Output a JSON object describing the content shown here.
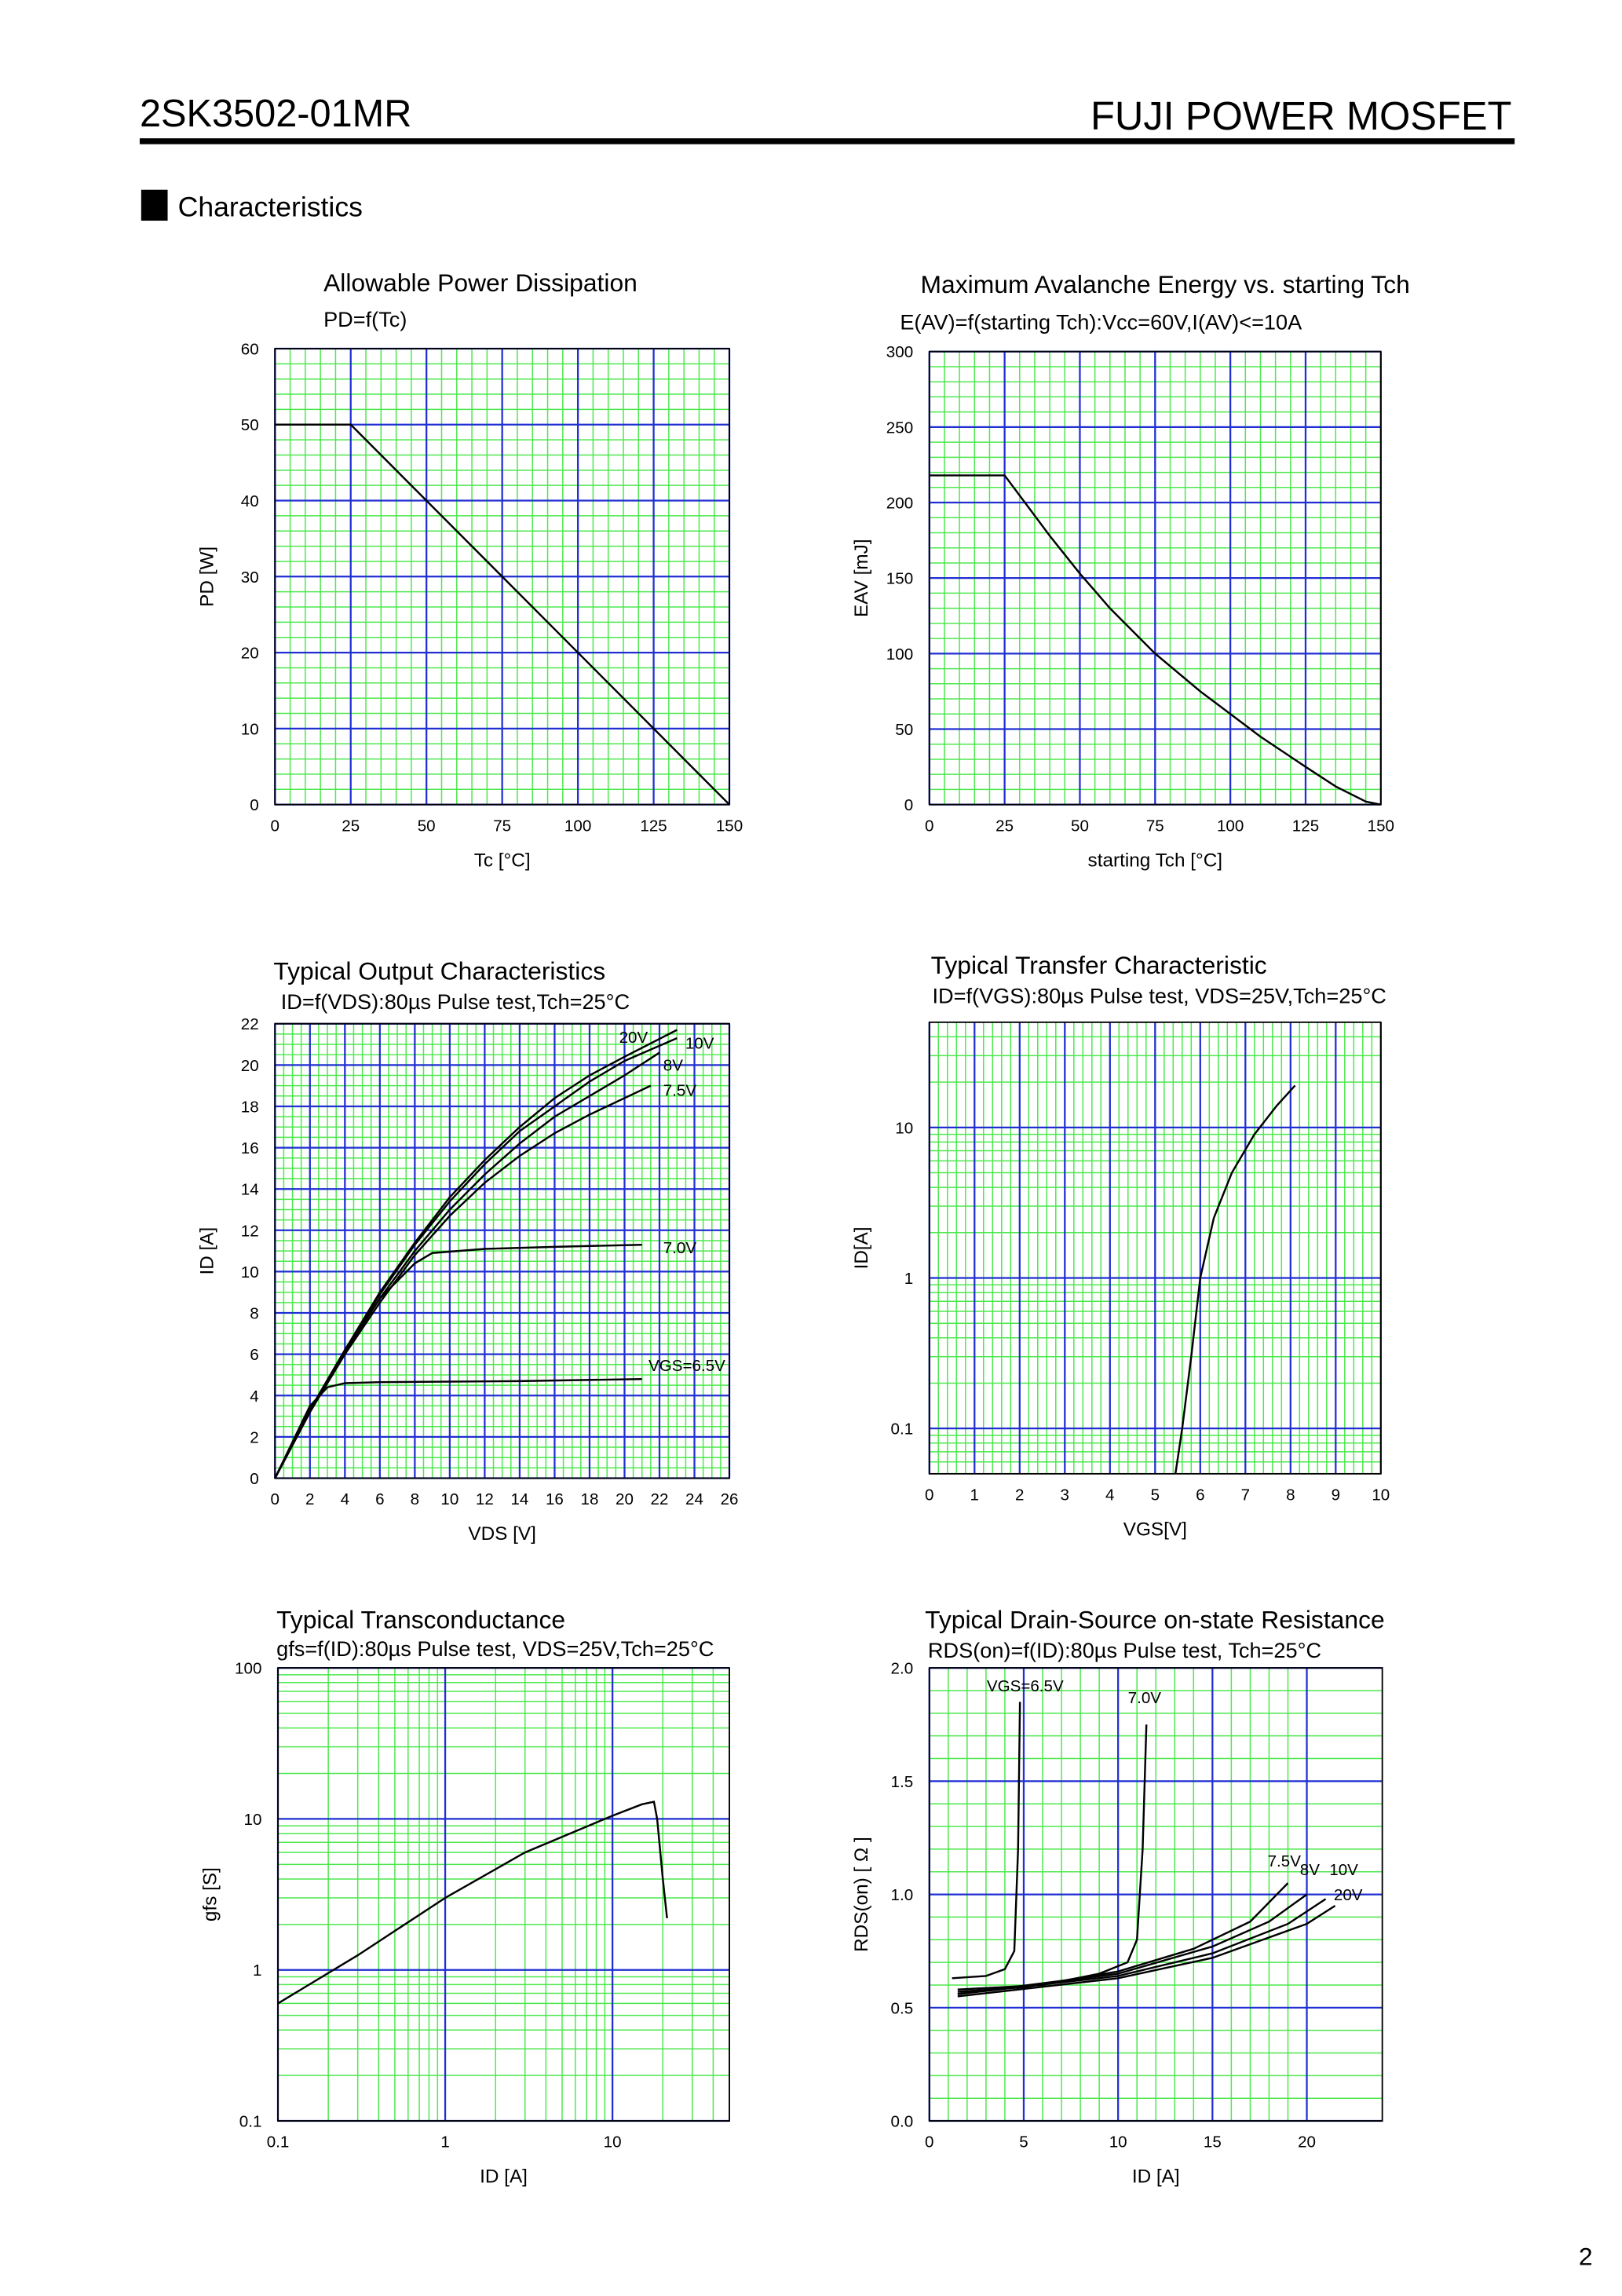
{
  "header": {
    "part_number": "2SK3502-01MR",
    "brand": "FUJI POWER MOSFET"
  },
  "section": "Characteristics",
  "page_number": "2",
  "chart_data": [
    {
      "type": "line",
      "title": "Allowable Power Dissipation",
      "subtitle": "PD=f(Tc)",
      "xlabel": "Tc [°C]",
      "ylabel": "PD [W]",
      "xlim": [
        0,
        150
      ],
      "ylim": [
        0,
        60
      ],
      "xticks": [
        0,
        25,
        50,
        75,
        100,
        125,
        150
      ],
      "yticks": [
        0,
        10,
        20,
        30,
        40,
        50,
        60
      ],
      "grid": true,
      "grid_color": "#1f2fd0",
      "minor_grid_color": "#4de84d",
      "series": [
        {
          "color": "#000000",
          "x": [
            0,
            25,
            150
          ],
          "values": [
            50,
            50,
            0
          ]
        }
      ]
    },
    {
      "type": "line",
      "title": "Maximum Avalanche Energy vs. starting Tch",
      "subtitle": "E(AV)=f(starting Tch):Vcc=60V,I(AV)<=10A",
      "xlabel": "starting Tch [°C]",
      "ylabel": "EAV [mJ]",
      "xlim": [
        0,
        150
      ],
      "ylim": [
        0,
        300
      ],
      "xticks": [
        0,
        25,
        50,
        75,
        100,
        125,
        150
      ],
      "yticks": [
        0,
        50,
        100,
        150,
        200,
        250,
        300
      ],
      "grid": true,
      "grid_color": "#1f2fd0",
      "minor_grid_color": "#4de84d",
      "series": [
        {
          "color": "#000000",
          "x": [
            0,
            25,
            40,
            50,
            60,
            75,
            90,
            100,
            110,
            125,
            135,
            145,
            150
          ],
          "values": [
            218,
            218,
            178,
            153,
            130,
            100,
            75,
            60,
            45,
            25,
            12,
            2,
            0
          ]
        }
      ]
    },
    {
      "type": "line",
      "title": "Typical Output Characteristics",
      "subtitle": "ID=f(VDS):80µs Pulse test,Tch=25°C",
      "xlabel": "VDS [V]",
      "ylabel": "ID [A]",
      "xlim": [
        0,
        26
      ],
      "ylim": [
        0,
        22
      ],
      "xticks": [
        0,
        2,
        4,
        6,
        8,
        10,
        12,
        14,
        16,
        18,
        20,
        22,
        24,
        26
      ],
      "yticks": [
        0,
        2,
        4,
        6,
        8,
        10,
        12,
        14,
        16,
        18,
        20,
        22
      ],
      "grid": true,
      "grid_color": "#1f2fd0",
      "minor_grid_color": "#4de84d",
      "series": [
        {
          "name": "20V",
          "color": "#000000",
          "x": [
            0,
            2,
            4,
            6,
            8,
            10,
            12,
            14,
            16,
            18,
            20,
            23
          ],
          "values": [
            0,
            3.3,
            6.2,
            9,
            11.4,
            13.6,
            15.4,
            17,
            18.4,
            19.5,
            20.4,
            21.7
          ]
        },
        {
          "name": "10V",
          "color": "#000000",
          "x": [
            0,
            2,
            4,
            6,
            8,
            10,
            12,
            14,
            16,
            18,
            20,
            23
          ],
          "values": [
            0,
            3.3,
            6.2,
            8.9,
            11.3,
            13.4,
            15.2,
            16.8,
            18,
            19.2,
            20.2,
            21.3
          ]
        },
        {
          "name": "8V",
          "color": "#000000",
          "x": [
            0,
            2,
            4,
            6,
            8,
            10,
            12,
            14,
            16,
            18,
            20,
            22
          ],
          "values": [
            0,
            3.2,
            6.1,
            8.7,
            11,
            13,
            14.7,
            16.2,
            17.5,
            18.5,
            19.5,
            20.6
          ]
        },
        {
          "name": "7.5V",
          "color": "#000000",
          "x": [
            0,
            2,
            4,
            6,
            8,
            10,
            12,
            14,
            16,
            18,
            20,
            21.5
          ],
          "values": [
            0,
            3.2,
            6,
            8.5,
            10.8,
            12.7,
            14.3,
            15.6,
            16.7,
            17.6,
            18.4,
            19
          ]
        },
        {
          "name": "7.0V",
          "color": "#000000",
          "x": [
            0,
            2,
            4,
            6,
            8,
            9,
            12,
            16,
            21
          ],
          "values": [
            0,
            3.3,
            6.2,
            8.7,
            10.4,
            10.9,
            11.1,
            11.2,
            11.3
          ]
        },
        {
          "name": "VGS=6.5V",
          "color": "#000000",
          "x": [
            0,
            2,
            3,
            4,
            6,
            14,
            21
          ],
          "values": [
            0,
            3.5,
            4.4,
            4.6,
            4.65,
            4.7,
            4.8
          ]
        }
      ]
    },
    {
      "type": "line",
      "title": "Typical Transfer Characteristic",
      "subtitle": "ID=f(VGS):80µs Pulse test, VDS=25V,Tch=25°C",
      "xlabel": "VGS[V]",
      "ylabel": "ID[A]",
      "xlim": [
        0,
        10
      ],
      "ylim": [
        0.05,
        50
      ],
      "log_y": true,
      "xticks": [
        0,
        1,
        2,
        3,
        4,
        5,
        6,
        7,
        8,
        9,
        10
      ],
      "yticks": [
        0.1,
        1,
        10
      ],
      "grid": true,
      "grid_color": "#1f2fd0",
      "minor_grid_color": "#4de84d",
      "series": [
        {
          "color": "#000000",
          "x": [
            5.45,
            5.6,
            5.8,
            6,
            6.3,
            6.7,
            7.2,
            7.7,
            8.1
          ],
          "values": [
            0.05,
            0.1,
            0.3,
            1,
            2.5,
            5,
            9,
            14,
            19
          ]
        }
      ]
    },
    {
      "type": "line",
      "title": "Typical Transconductance",
      "subtitle": "gfs=f(ID):80µs Pulse test, VDS=25V,Tch=25°C",
      "xlabel": "ID [A]",
      "ylabel": "gfs [S]",
      "xlim": [
        0.1,
        50
      ],
      "ylim": [
        0.1,
        100
      ],
      "log_x": true,
      "log_y": true,
      "xticks": [
        0.1,
        1,
        10
      ],
      "yticks": [
        0.1,
        1,
        10,
        100
      ],
      "grid": true,
      "grid_color": "#1f2fd0",
      "minor_grid_color": "#4de84d",
      "series": [
        {
          "color": "#000000",
          "x": [
            0.1,
            0.3,
            1,
            3,
            10,
            15,
            17.7,
            18.5,
            20,
            21.2
          ],
          "values": [
            0.6,
            1.25,
            3,
            6,
            10.5,
            12.5,
            13,
            10,
            4,
            2.2
          ]
        }
      ]
    },
    {
      "type": "line",
      "title": "Typical Drain-Source on-state Resistance",
      "subtitle": "RDS(on)=f(ID):80µs Pulse test, Tch=25°C",
      "xlabel": "ID [A]",
      "ylabel": "RDS(on) [ Ω ]",
      "xlim": [
        0,
        24
      ],
      "ylim": [
        0,
        2
      ],
      "xticks": [
        0,
        5,
        10,
        15,
        20
      ],
      "yticks": [
        {
          "value": 0,
          "label": "0.0"
        },
        {
          "value": 0.5,
          "label": "0.5"
        },
        {
          "value": 1,
          "label": "1.0"
        },
        {
          "value": 1.5,
          "label": "1.5"
        },
        {
          "value": 2,
          "label": "2.0"
        }
      ],
      "grid": true,
      "grid_color": "#1f2fd0",
      "minor_grid_color": "#4de84d",
      "series": [
        {
          "name": "VGS=6.5V",
          "color": "#000000",
          "x": [
            1.2,
            3,
            4,
            4.5,
            4.7,
            4.8
          ],
          "values": [
            0.63,
            0.64,
            0.67,
            0.75,
            1.2,
            1.85
          ]
        },
        {
          "name": "7.0V",
          "color": "#000000",
          "x": [
            1.5,
            6,
            9,
            10.5,
            11,
            11.3,
            11.5
          ],
          "values": [
            0.58,
            0.6,
            0.65,
            0.7,
            0.8,
            1.2,
            1.75
          ]
        },
        {
          "name": "7.5V",
          "color": "#000000",
          "x": [
            1.5,
            5,
            10,
            14,
            17,
            19
          ],
          "values": [
            0.57,
            0.59,
            0.66,
            0.76,
            0.88,
            1.05
          ]
        },
        {
          "name": "8V",
          "color": "#000000",
          "x": [
            1.5,
            10,
            15,
            18,
            20
          ],
          "values": [
            0.56,
            0.65,
            0.77,
            0.88,
            1
          ]
        },
        {
          "name": "10V",
          "color": "#000000",
          "x": [
            1.5,
            10,
            15,
            19,
            21
          ],
          "values": [
            0.56,
            0.64,
            0.74,
            0.87,
            0.98
          ]
        },
        {
          "name": "20V",
          "color": "#000000",
          "x": [
            1.5,
            10,
            15,
            20,
            21.5
          ],
          "values": [
            0.55,
            0.63,
            0.72,
            0.87,
            0.95
          ]
        }
      ]
    }
  ]
}
